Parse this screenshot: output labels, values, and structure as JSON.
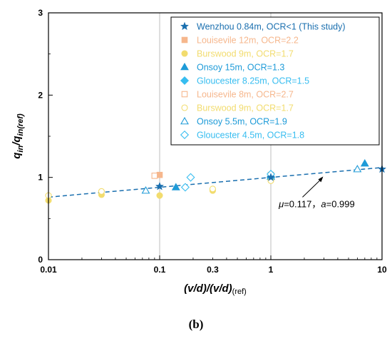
{
  "caption": "(b)",
  "chart_data": {
    "type": "scatter",
    "xscale": "log",
    "xlim": [
      0.01,
      10
    ],
    "ylim": [
      0,
      3
    ],
    "x_ticks": [
      "0.01",
      "0.1",
      "1",
      "10"
    ],
    "x_minor_tick_labels": [
      "0.3"
    ],
    "y_ticks": [
      "0",
      "1",
      "2",
      "3"
    ],
    "xlabel": {
      "main": "(v/d)/(v/d)",
      "sub": "(ref)"
    },
    "ylabel": {
      "main": "q",
      "sub1": "in",
      "sep": "/q",
      "sub2": "in(ref)"
    },
    "grid": {
      "vertical_at": [
        0.1,
        1
      ]
    },
    "legend_position": "top-right",
    "series": [
      {
        "name": "Wenzhou 0.84m, OCR<1 (This study)",
        "marker": "star",
        "filled": true,
        "color": "#1a6faf",
        "points": [
          [
            0.1,
            0.89
          ],
          [
            1,
            1.0
          ],
          [
            10,
            1.1
          ]
        ]
      },
      {
        "name": "Louisevile 12m, OCR=2.2",
        "marker": "square",
        "filled": true,
        "color": "#f6b78d",
        "points": [
          [
            0.1,
            1.03
          ],
          [
            1,
            1.03
          ]
        ]
      },
      {
        "name": "Burswood 9m, OCR=1.7",
        "marker": "circle",
        "filled": true,
        "color": "#f2dc6e",
        "points": [
          [
            0.01,
            0.72
          ],
          [
            0.03,
            0.79
          ],
          [
            0.1,
            0.78
          ],
          [
            0.3,
            0.84
          ],
          [
            1,
            0.97
          ]
        ]
      },
      {
        "name": "Onsoy 15m, OCR=1.3",
        "marker": "triangle",
        "filled": true,
        "color": "#1e9bd8",
        "points": [
          [
            0.14,
            0.88
          ],
          [
            1,
            1.01
          ],
          [
            7,
            1.17
          ]
        ]
      },
      {
        "name": "Gloucester 8.25m, OCR=1.5",
        "marker": "diamond",
        "filled": true,
        "color": "#37bdf0",
        "points": [
          [
            1,
            1.0
          ]
        ]
      },
      {
        "name": "Louisevile 8m, OCR=2.7",
        "marker": "square",
        "filled": false,
        "color": "#f6b78d",
        "points": [
          [
            0.09,
            1.02
          ],
          [
            1,
            1.03
          ]
        ]
      },
      {
        "name": "Burswood 9m, OCR=1.7",
        "marker": "circle",
        "filled": false,
        "color": "#f2dc6e",
        "points": [
          [
            0.01,
            0.78
          ],
          [
            0.03,
            0.83
          ],
          [
            0.3,
            0.86
          ],
          [
            1,
            0.96
          ]
        ]
      },
      {
        "name": "Onsoy 5.5m, OCR=1.9",
        "marker": "triangle",
        "filled": false,
        "color": "#1e9bd8",
        "points": [
          [
            0.075,
            0.84
          ],
          [
            1,
            1.03
          ],
          [
            6,
            1.1
          ]
        ]
      },
      {
        "name": "Gloucester 4.5m, OCR=1.8",
        "marker": "diamond",
        "filled": false,
        "color": "#37bdf0",
        "points": [
          [
            0.17,
            0.88
          ],
          [
            0.19,
            1.0
          ],
          [
            1,
            1.04
          ]
        ]
      }
    ],
    "fit_line": {
      "color": "#1a6faf",
      "style": "dashed",
      "x_range": [
        0.01,
        10
      ],
      "y_at_x_min": 0.76,
      "y_at_x_max": 1.12
    },
    "annotation": {
      "parts": [
        {
          "text": "μ",
          "italic": true
        },
        {
          "text": "=0.117，",
          "italic": false
        },
        {
          "text": "a",
          "italic": true
        },
        {
          "text": "=0.999",
          "italic": false
        }
      ],
      "points_to": [
        3,
        1.02
      ]
    }
  }
}
